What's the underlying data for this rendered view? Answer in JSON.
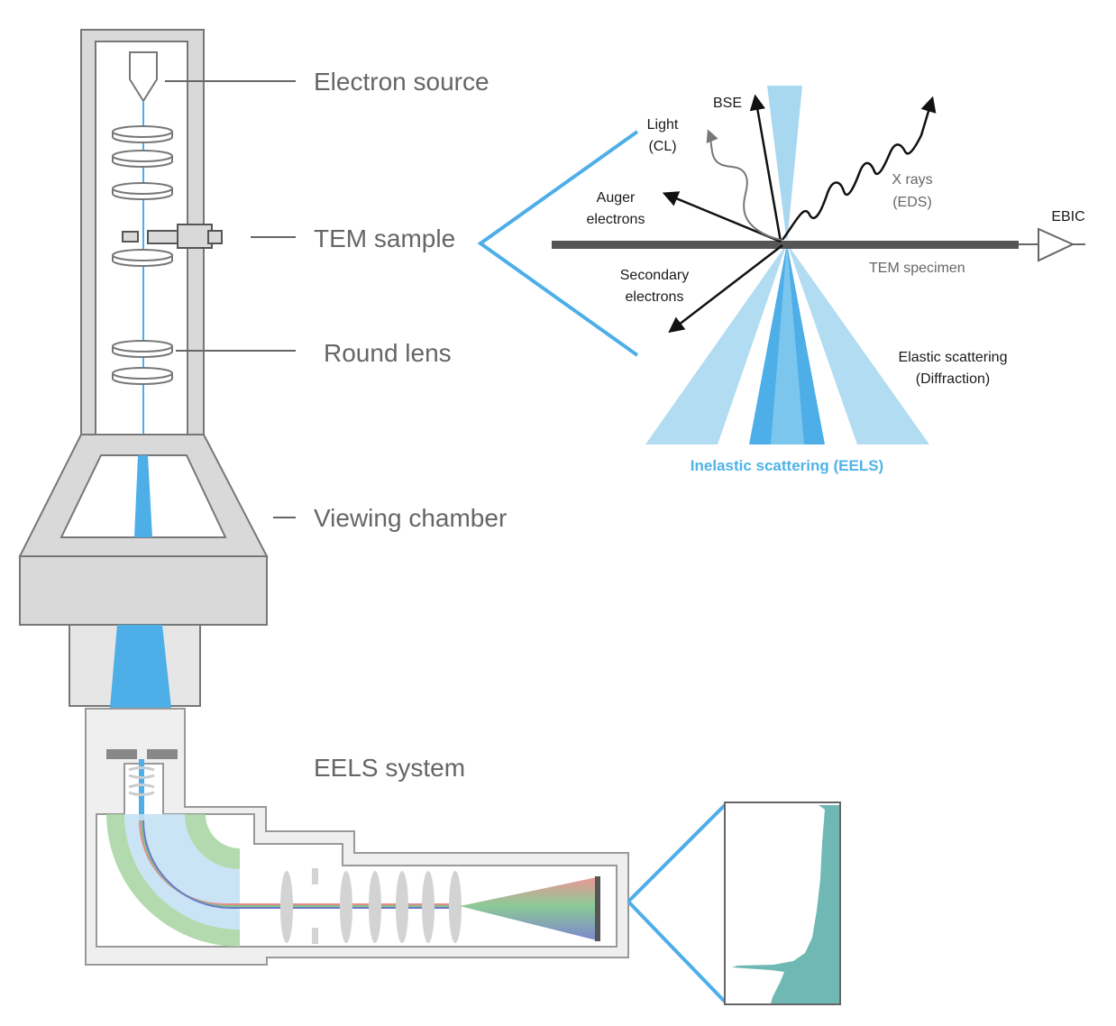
{
  "column_labels": {
    "electron_source": "Electron source",
    "tem_sample": "TEM sample",
    "round_lens": "Round lens",
    "viewing_chamber": "Viewing chamber",
    "eels_system": "EELS system"
  },
  "interaction_labels": {
    "bse": "BSE",
    "light_line1": "Light",
    "light_line2": "(CL)",
    "auger_line1": "Auger",
    "auger_line2": "electrons",
    "xrays_line1": "X rays",
    "xrays_line2": "(EDS)",
    "ebic": "EBIC",
    "tem_specimen": "TEM specimen",
    "secondary_line1": "Secondary",
    "secondary_line2": "electrons",
    "elastic_line1": "Elastic scattering",
    "elastic_line2": "(Diffraction)",
    "inelastic": "Inelastic scattering (EELS)"
  },
  "colors": {
    "beam": "#4daee8",
    "beam_light": "#a8d8f0",
    "housing": "#d9d9d9",
    "housing_stroke": "#777777",
    "specimen": "#555555",
    "spectrum_fill": "#6fb8b4",
    "magnet_green": "#a6d4a0",
    "magnet_blue": "#c4e0f4"
  }
}
